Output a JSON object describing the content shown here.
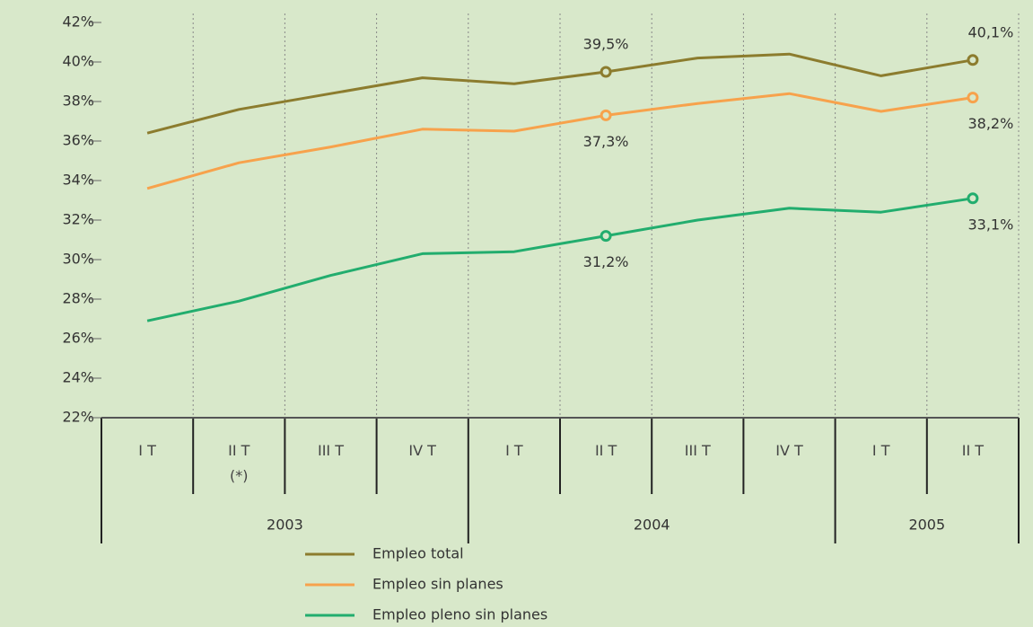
{
  "chart_data": {
    "type": "line",
    "categories": [
      "I T",
      "II T\n(*)",
      "III T",
      "IV T",
      "I T",
      "II T",
      "III T",
      "IV T",
      "I T",
      "II T"
    ],
    "years": [
      "2003",
      "2004",
      "2005"
    ],
    "series": [
      {
        "name": "Empleo total",
        "color": "#8c7c2e",
        "values": [
          36.4,
          37.6,
          38.4,
          39.2,
          38.9,
          39.5,
          40.2,
          40.4,
          39.3,
          40.1
        ],
        "value_labels": [
          null,
          null,
          null,
          null,
          null,
          "39,5%",
          null,
          null,
          null,
          "40,1%"
        ]
      },
      {
        "name": "Empleo sin planes",
        "color": "#f7a24c",
        "values": [
          33.6,
          34.9,
          35.7,
          36.6,
          36.5,
          37.3,
          37.9,
          38.4,
          37.5,
          38.2
        ],
        "value_labels": [
          null,
          null,
          null,
          null,
          null,
          "37,3%",
          null,
          null,
          null,
          "38,2%"
        ]
      },
      {
        "name": "Empleo pleno sin planes",
        "color": "#22ad6e",
        "values": [
          26.9,
          27.9,
          29.2,
          30.3,
          30.4,
          31.2,
          32.0,
          32.6,
          32.4,
          33.1
        ],
        "value_labels": [
          null,
          null,
          null,
          null,
          null,
          "31,2%",
          null,
          null,
          null,
          "33,1%"
        ]
      }
    ],
    "ylim": [
      22,
      42
    ],
    "yticks": [
      {
        "value": 22,
        "label": "22%"
      },
      {
        "value": 24,
        "label": "24%"
      },
      {
        "value": 26,
        "label": "26%"
      },
      {
        "value": 28,
        "label": "28%"
      },
      {
        "value": 30,
        "label": "30%"
      },
      {
        "value": 32,
        "label": "32%"
      },
      {
        "value": 34,
        "label": "34%"
      },
      {
        "value": 36,
        "label": "36%"
      },
      {
        "value": 38,
        "label": "38%"
      },
      {
        "value": 40,
        "label": "40%"
      },
      {
        "value": 42,
        "label": "42%"
      }
    ],
    "grid": true
  }
}
